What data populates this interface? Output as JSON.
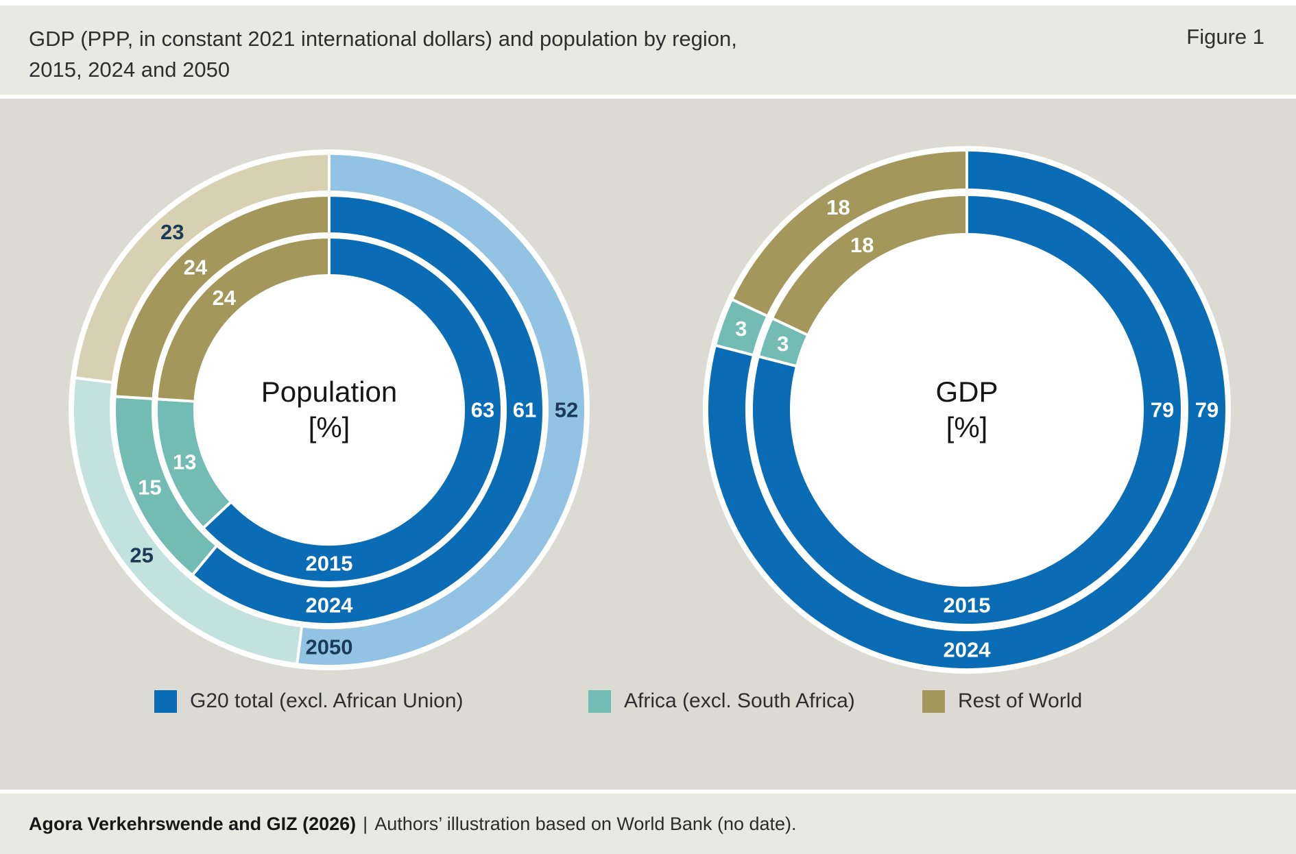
{
  "header": {
    "title_line1": "GDP (PPP, in constant 2021 international dollars) and population by region,",
    "title_line2": "2015, 2024 and 2050",
    "figure_label": "Figure 1"
  },
  "colors": {
    "dark": [
      "#0a6cb5",
      "#72bcb4",
      "#a3975c"
    ],
    "light": [
      "#92c3e2",
      "#c3e1dd",
      "#d8d0b2"
    ],
    "label_on_dark": "#ffffff",
    "label_on_light": "#1a3a57"
  },
  "legend": [
    {
      "label": "G20 total (excl. African Union)",
      "color": "#0a6cb5"
    },
    {
      "label": "Africa (excl. South Africa)",
      "color": "#72bcb4"
    },
    {
      "label": "Rest of World",
      "color": "#a3975c"
    }
  ],
  "chart_data": [
    {
      "type": "donut",
      "title": "Population",
      "unit": "[%]",
      "series": [
        "G20 total (excl. African Union)",
        "Africa (excl. South Africa)",
        "Rest of World"
      ],
      "ring_order": "inner_to_outer",
      "legend_position": "bottom",
      "rings": [
        {
          "year": "2015",
          "values": [
            63,
            13,
            24
          ],
          "shade": "dark"
        },
        {
          "year": "2024",
          "values": [
            61,
            15,
            24
          ],
          "shade": "dark"
        },
        {
          "year": "2050",
          "values": [
            52,
            25,
            23
          ],
          "shade": "light"
        }
      ]
    },
    {
      "type": "donut",
      "title": "GDP",
      "unit": "[%]",
      "series": [
        "G20 total (excl. African Union)",
        "Africa (excl. South Africa)",
        "Rest of World"
      ],
      "ring_order": "inner_to_outer",
      "legend_position": "bottom",
      "rings": [
        {
          "year": "2015",
          "values": [
            79,
            3,
            18
          ],
          "shade": "dark"
        },
        {
          "year": "2024",
          "values": [
            79,
            3,
            18
          ],
          "shade": "dark"
        }
      ]
    }
  ],
  "footer": {
    "source_bold": "Agora Verkehrswende and GIZ (2026)",
    "separator": "|",
    "source_rest": "Authors’ illustration based on World Bank (no date)."
  }
}
